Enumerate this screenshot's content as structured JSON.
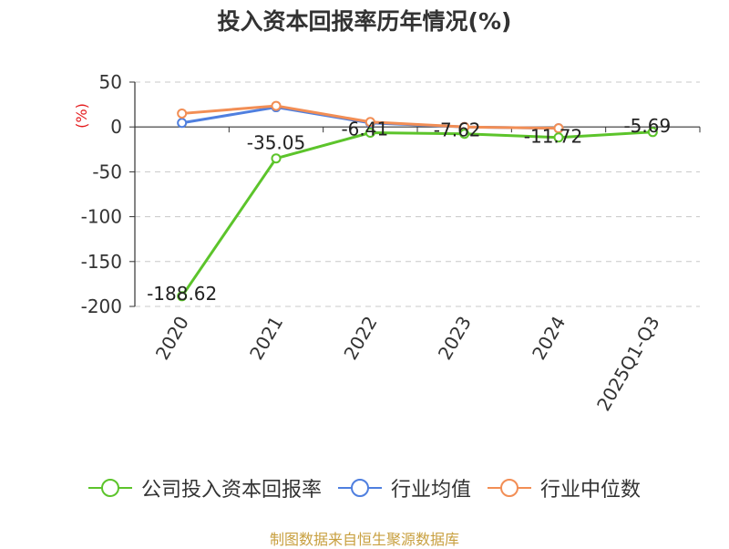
{
  "title": "投入资本回报率历年情况(%)",
  "source": "制图数据来自恒生聚源数据库",
  "chart_data": {
    "type": "line",
    "unit_label": "(%)",
    "categories": [
      "2020",
      "2021",
      "2022",
      "2023",
      "2024",
      "2025Q1-Q3"
    ],
    "ylim": [
      -200,
      50
    ],
    "yticks": [
      50,
      0,
      -50,
      -100,
      -150,
      -200
    ],
    "grid": true,
    "legend_position": "bottom",
    "series": [
      {
        "name": "公司投入资本回报率",
        "color": "#5cc42b",
        "values": [
          -188.62,
          -35.05,
          -6.41,
          -7.62,
          -11.72,
          -5.69
        ],
        "labels": [
          "-188.62",
          "-35.05",
          "-6.41",
          "-7.62",
          "-11.72",
          "-5.69"
        ]
      },
      {
        "name": "行业均值",
        "color": "#4f7fdf",
        "values": [
          4.5,
          22,
          4.5,
          0,
          -1.5,
          null
        ]
      },
      {
        "name": "行业中位数",
        "color": "#f28e55",
        "values": [
          15,
          23.5,
          5.5,
          0,
          -1.5,
          null
        ]
      }
    ]
  }
}
